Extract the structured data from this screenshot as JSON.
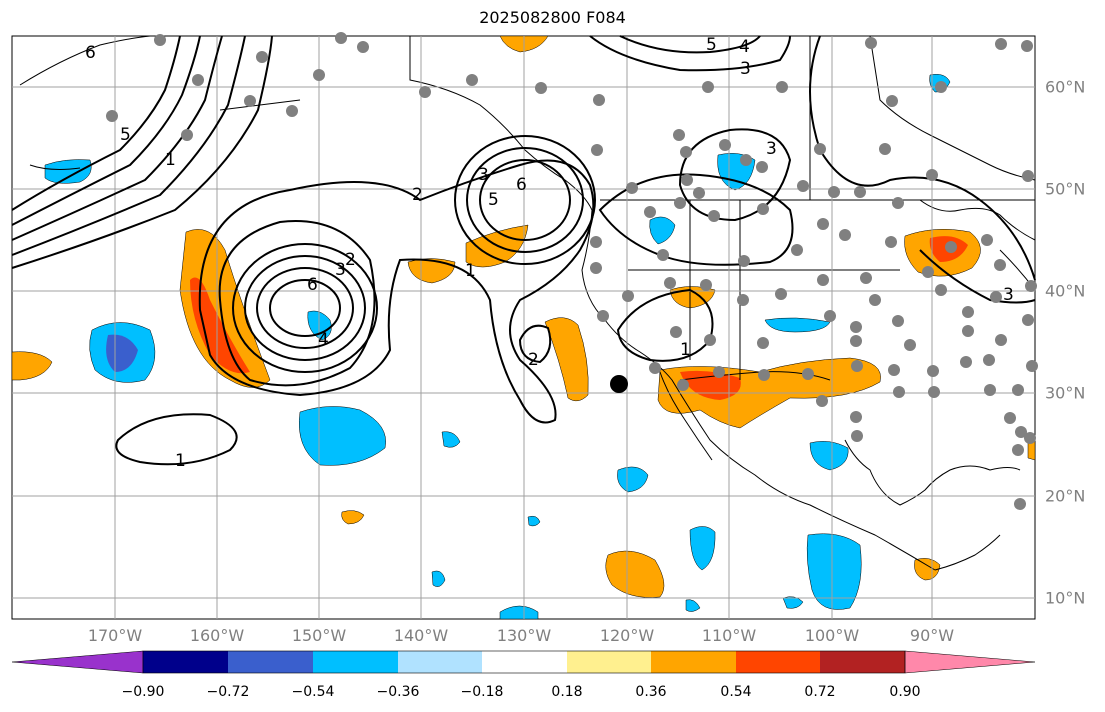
{
  "title": "2025082800 F084",
  "lon_labels": [
    "170°W",
    "160°W",
    "150°W",
    "140°W",
    "130°W",
    "120°W",
    "110°W",
    "100°W",
    "90°W"
  ],
  "lat_labels": [
    "60°N",
    "50°N",
    "40°N",
    "30°N",
    "20°N",
    "10°N"
  ],
  "colorbar": {
    "colors": [
      "#9932cc",
      "#00008b",
      "#3a5fcd",
      "#00bfff",
      "#b0e2ff",
      "#ffffff",
      "#fff08f",
      "#ffa500",
      "#ff4500",
      "#b22222",
      "#ff88aa"
    ],
    "tick_labels": [
      "−0.90",
      "−0.72",
      "−0.54",
      "−0.36",
      "−0.18",
      "0.18",
      "0.36",
      "0.54",
      "0.72",
      "0.90"
    ]
  },
  "contour_labels": [
    "1",
    "2",
    "3",
    "4",
    "5",
    "6"
  ],
  "colors": {
    "contour": "#000000",
    "station": "#808080",
    "grid": "#a0a0a0",
    "marker": "#000000"
  }
}
